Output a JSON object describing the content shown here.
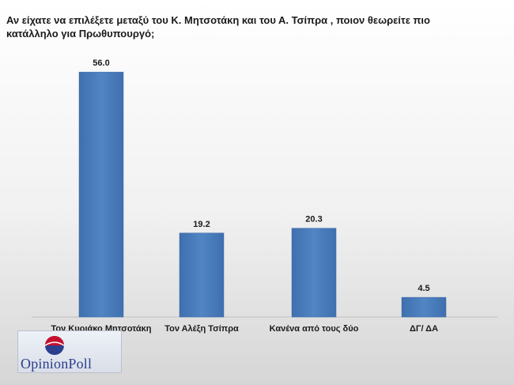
{
  "chart_data": {
    "type": "bar",
    "title": "Αν είχατε να επιλέξετε μεταξύ του Κ. Μητσοτάκη και του Α. Τσίπρα , ποιον θεωρείτε πιο κατάλληλο για Πρωθυπουργό;",
    "categories": [
      "Τον Κυριάκο Μητσοτάκη",
      "Τον Αλέξη Τσίπρα",
      "Κανένα από τους δύο",
      "ΔΓ/ ΔΑ"
    ],
    "values": [
      56.0,
      19.2,
      20.3,
      4.5
    ],
    "value_labels": [
      "56.0",
      "19.2",
      "20.3",
      "4.5"
    ],
    "xlabel": "",
    "ylabel": "",
    "ylim": [
      0,
      60
    ],
    "grid": false,
    "bar_color": "#4f81bd"
  },
  "logo": {
    "text": "OpinionPoll",
    "colors": {
      "red": "#c8102e",
      "blue": "#2b3f8e"
    }
  }
}
